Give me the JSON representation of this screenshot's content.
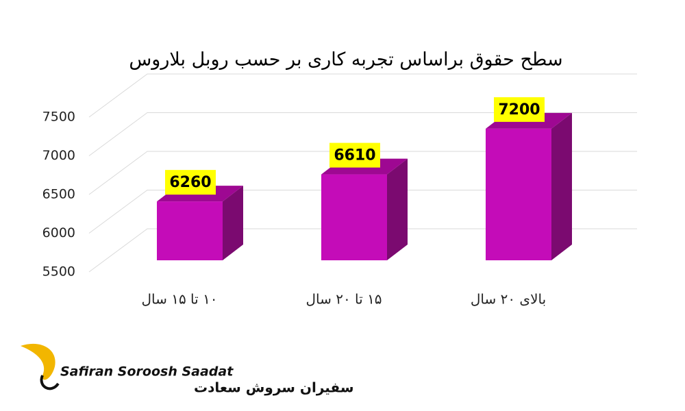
{
  "chart_data": {
    "type": "bar3d",
    "title": "سطح حقوق براساس تجربه کاری بر حسب روبل بلاروس",
    "categories": [
      "۱۰   تا ۱۵ سال",
      "۱۵ تا ۲۰ سال",
      "بالای ۲۰ سال"
    ],
    "values": [
      6260,
      6610,
      7200
    ],
    "color": "#c40cb8",
    "ylim": [
      5500,
      7500
    ],
    "yticks": [
      5500,
      6000,
      6500,
      7000,
      7500
    ],
    "grid": true
  },
  "logo": {
    "latin": "Safiran Soroosh Saadat",
    "persian": "سفیران سروش سعادت"
  }
}
